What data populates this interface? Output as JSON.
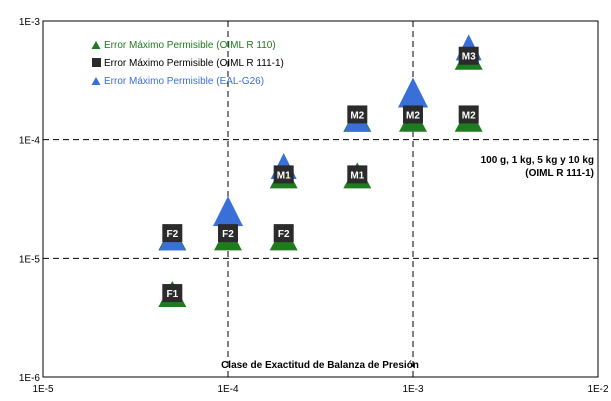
{
  "chart_data": {
    "type": "scatter",
    "x_scale": "log",
    "y_scale": "log",
    "xlim": [
      1e-05,
      0.01
    ],
    "ylim": [
      1e-06,
      0.001
    ],
    "x_ticks": [
      {
        "value": 1e-05,
        "label": "1E-5"
      },
      {
        "value": 0.0001,
        "label": "1E-4"
      },
      {
        "value": 0.001,
        "label": "1E-3"
      },
      {
        "value": 0.01,
        "label": "1E-2"
      }
    ],
    "y_ticks": [
      {
        "value": 1e-06,
        "label": "1E-6"
      },
      {
        "value": 1e-05,
        "label": "1E-5"
      },
      {
        "value": 0.0001,
        "label": "1E-4"
      },
      {
        "value": 0.001,
        "label": "1E-3"
      }
    ],
    "grid": true,
    "legend_position": "top-left",
    "series": [
      {
        "name": "Error Máximo Permisible (OIML R 110)",
        "marker": "triangle-up",
        "color": "#1e7b1e",
        "text_color": "#1e7b1e",
        "points": [
          {
            "x": 5e-05,
            "y": 5e-06
          },
          {
            "x": 5e-05,
            "y": 1.5e-05
          },
          {
            "x": 0.0001,
            "y": 1.5e-05
          },
          {
            "x": 0.0002,
            "y": 1.5e-05
          },
          {
            "x": 0.0002,
            "y": 5e-05
          },
          {
            "x": 0.0005,
            "y": 5e-05
          },
          {
            "x": 0.0005,
            "y": 0.00015
          },
          {
            "x": 0.001,
            "y": 0.00015
          },
          {
            "x": 0.002,
            "y": 0.00015
          },
          {
            "x": 0.002,
            "y": 0.0005
          }
        ]
      },
      {
        "name": "Error Máximo Permisible (OIML R 111-1)",
        "marker": "square",
        "color": "#2b2b2b",
        "text_color": "#000000",
        "points": [
          {
            "x": 5e-05,
            "y": 5e-06,
            "label": "F1"
          },
          {
            "x": 5e-05,
            "y": 1.6e-05,
            "label": "F2"
          },
          {
            "x": 0.0001,
            "y": 1.6e-05,
            "label": "F2"
          },
          {
            "x": 0.0002,
            "y": 1.6e-05,
            "label": "F2"
          },
          {
            "x": 0.0002,
            "y": 5e-05,
            "label": "M1"
          },
          {
            "x": 0.0005,
            "y": 5e-05,
            "label": "M1"
          },
          {
            "x": 0.0005,
            "y": 0.00016,
            "label": "M2"
          },
          {
            "x": 0.001,
            "y": 0.00016,
            "label": "M2"
          },
          {
            "x": 0.002,
            "y": 0.00016,
            "label": "M2"
          },
          {
            "x": 0.002,
            "y": 0.0005,
            "label": "M3"
          }
        ]
      },
      {
        "name": "Error Máximo Permisible (EAL-G26)",
        "marker": "triangle-up",
        "color": "#3a6fd8",
        "text_color": "#3a6fd8",
        "points": [
          {
            "x": 5e-05,
            "y": 1.5e-05
          },
          {
            "x": 0.0001,
            "y": 2.5e-05
          },
          {
            "x": 0.0002,
            "y": 6e-05
          },
          {
            "x": 0.0005,
            "y": 0.00015
          },
          {
            "x": 0.001,
            "y": 0.00025
          },
          {
            "x": 0.002,
            "y": 0.0006
          }
        ]
      }
    ],
    "annotations": [
      {
        "text": "100 g, 1 kg, 5 kg y 10 kg"
      },
      {
        "text": "(OIML R 111-1)"
      },
      {
        "text": "Clase de Exactitud de Balanza de Presión"
      }
    ]
  }
}
